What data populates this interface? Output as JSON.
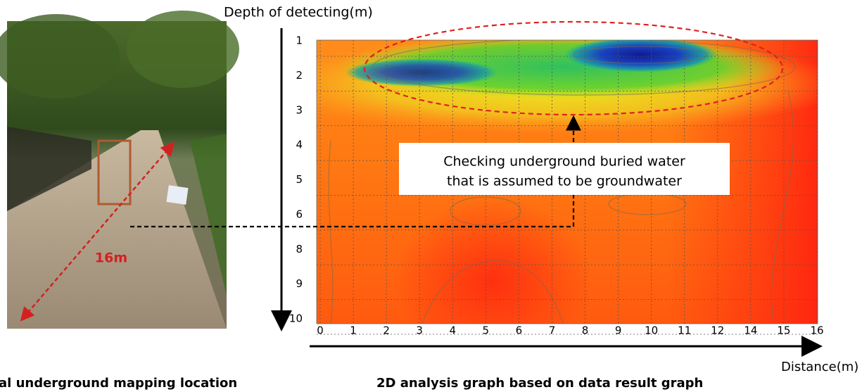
{
  "figure": {
    "left_panel": {
      "distance_label": "16m",
      "caption": "al underground mapping location"
    },
    "right_panel": {
      "y_axis_title": "Depth of detecting(m)",
      "x_axis_title": "Distance(m)",
      "y_tick_labels": [
        "1",
        "2",
        "3",
        "4",
        "5",
        "6",
        "8",
        "9",
        "10"
      ],
      "x_tick_labels": [
        "0",
        "1",
        "2",
        "3",
        "4",
        "5",
        "6",
        "7",
        "8",
        "9",
        "10",
        "11",
        "12",
        "14",
        "15",
        "16"
      ],
      "annotation": [
        "Checking underground buried water",
        "that is assumed to be groundwater"
      ],
      "caption": "2D analysis graph based on data result graph"
    }
  }
}
